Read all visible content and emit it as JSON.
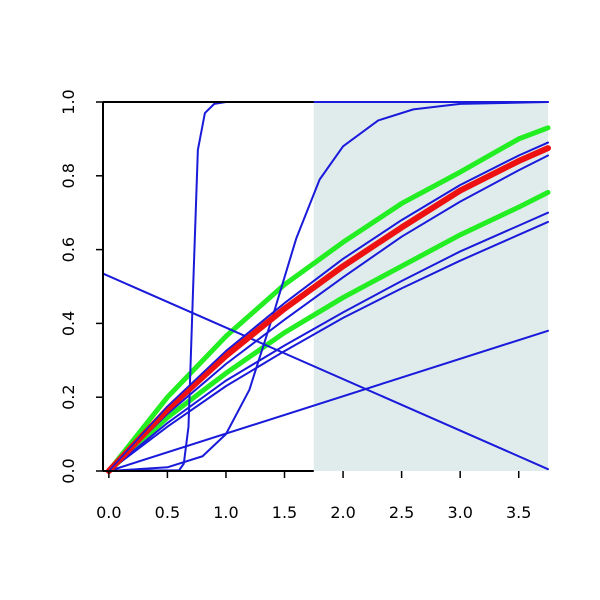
{
  "chart_data": {
    "type": "line",
    "title": "",
    "xlabel": "",
    "ylabel": "",
    "xlim": [
      -0.05,
      3.75
    ],
    "ylim": [
      0,
      1
    ],
    "grid": false,
    "legend": "none",
    "x_ticks": [
      "0.0",
      "0.5",
      "1.0",
      "1.5",
      "2.0",
      "2.5",
      "3.0",
      "3.5"
    ],
    "y_ticks": [
      "0.0",
      "0.2",
      "0.4",
      "0.6",
      "0.8",
      "1.0"
    ],
    "shaded_region": {
      "x_from": 1.75,
      "x_to": 3.75,
      "color": "#e0ecec"
    },
    "colors": {
      "blue": "#1a1adb",
      "green": "#22ee22",
      "red": "#ee1111",
      "axis": "#000000"
    },
    "series": [
      {
        "color": "#22ee22",
        "width": 5,
        "points": [
          [
            0,
            0
          ],
          [
            0.5,
            0.2
          ],
          [
            1.0,
            0.365
          ],
          [
            1.5,
            0.505
          ],
          [
            2.0,
            0.62
          ],
          [
            2.5,
            0.725
          ],
          [
            3.0,
            0.81
          ],
          [
            3.5,
            0.9
          ],
          [
            3.75,
            0.93
          ]
        ]
      },
      {
        "color": "#22ee22",
        "width": 5,
        "points": [
          [
            0,
            0
          ],
          [
            0.5,
            0.145
          ],
          [
            1.0,
            0.265
          ],
          [
            1.5,
            0.375
          ],
          [
            2.0,
            0.47
          ],
          [
            2.5,
            0.555
          ],
          [
            3.0,
            0.64
          ],
          [
            3.5,
            0.715
          ],
          [
            3.75,
            0.755
          ]
        ]
      },
      {
        "color": "#1a1adb",
        "width": 2,
        "points": [
          [
            0,
            0
          ],
          [
            0.5,
            0.175
          ],
          [
            1.0,
            0.325
          ],
          [
            1.5,
            0.455
          ],
          [
            2.0,
            0.575
          ],
          [
            2.5,
            0.68
          ],
          [
            3.0,
            0.775
          ],
          [
            3.5,
            0.855
          ],
          [
            3.75,
            0.89
          ]
        ]
      },
      {
        "color": "#1a1adb",
        "width": 2,
        "points": [
          [
            0,
            0
          ],
          [
            0.5,
            0.155
          ],
          [
            1.0,
            0.29
          ],
          [
            1.5,
            0.41
          ],
          [
            2.0,
            0.525
          ],
          [
            2.5,
            0.635
          ],
          [
            3.0,
            0.73
          ],
          [
            3.5,
            0.815
          ],
          [
            3.75,
            0.855
          ]
        ]
      },
      {
        "color": "#1a1adb",
        "width": 2,
        "points": [
          [
            0,
            0
          ],
          [
            0.5,
            0.13
          ],
          [
            1.0,
            0.245
          ],
          [
            1.5,
            0.34
          ],
          [
            2.0,
            0.43
          ],
          [
            2.5,
            0.515
          ],
          [
            3.0,
            0.595
          ],
          [
            3.5,
            0.665
          ],
          [
            3.75,
            0.7
          ]
        ]
      },
      {
        "color": "#1a1adb",
        "width": 2,
        "points": [
          [
            0,
            0
          ],
          [
            0.5,
            0.12
          ],
          [
            1.0,
            0.23
          ],
          [
            1.5,
            0.325
          ],
          [
            2.0,
            0.415
          ],
          [
            2.5,
            0.495
          ],
          [
            3.0,
            0.57
          ],
          [
            3.5,
            0.64
          ],
          [
            3.75,
            0.675
          ]
        ]
      },
      {
        "color": "#1a1adb",
        "width": 2,
        "points": [
          [
            -0.05,
            0.535
          ],
          [
            3.75,
            0.005
          ]
        ]
      },
      {
        "color": "#1a1adb",
        "width": 2,
        "points": [
          [
            0,
            0
          ],
          [
            3.75,
            0.38
          ]
        ]
      },
      {
        "color": "#1a1adb",
        "width": 2,
        "points": [
          [
            0,
            0
          ],
          [
            0.6,
            0.002
          ],
          [
            0.64,
            0.02
          ],
          [
            0.68,
            0.12
          ],
          [
            0.72,
            0.5
          ],
          [
            0.76,
            0.87
          ],
          [
            0.82,
            0.97
          ],
          [
            0.9,
            0.995
          ],
          [
            1.0,
            1.0
          ],
          [
            3.75,
            1.0
          ]
        ]
      },
      {
        "color": "#1a1adb",
        "width": 2,
        "points": [
          [
            0,
            0
          ],
          [
            0.5,
            0.01
          ],
          [
            0.8,
            0.04
          ],
          [
            1.0,
            0.1
          ],
          [
            1.2,
            0.22
          ],
          [
            1.4,
            0.42
          ],
          [
            1.6,
            0.63
          ],
          [
            1.8,
            0.79
          ],
          [
            2.0,
            0.88
          ],
          [
            2.3,
            0.95
          ],
          [
            2.6,
            0.98
          ],
          [
            3.0,
            0.995
          ],
          [
            3.75,
            1.0
          ]
        ]
      },
      {
        "color": "#ee1111",
        "width": 6,
        "points": [
          [
            0,
            0
          ],
          [
            0.5,
            0.167
          ],
          [
            1.0,
            0.312
          ],
          [
            1.5,
            0.44
          ],
          [
            2.0,
            0.555
          ],
          [
            2.5,
            0.66
          ],
          [
            3.0,
            0.76
          ],
          [
            3.5,
            0.84
          ],
          [
            3.75,
            0.875
          ]
        ]
      },
      {
        "color": "#1a1adb",
        "width": 1.5,
        "points": [
          [
            0,
            0
          ],
          [
            0.5,
            0.175
          ],
          [
            1.0,
            0.325
          ],
          [
            1.5,
            0.455
          ],
          [
            2.0,
            0.575
          ],
          [
            2.5,
            0.68
          ],
          [
            3.0,
            0.775
          ],
          [
            3.5,
            0.855
          ],
          [
            3.75,
            0.89
          ]
        ]
      }
    ]
  }
}
